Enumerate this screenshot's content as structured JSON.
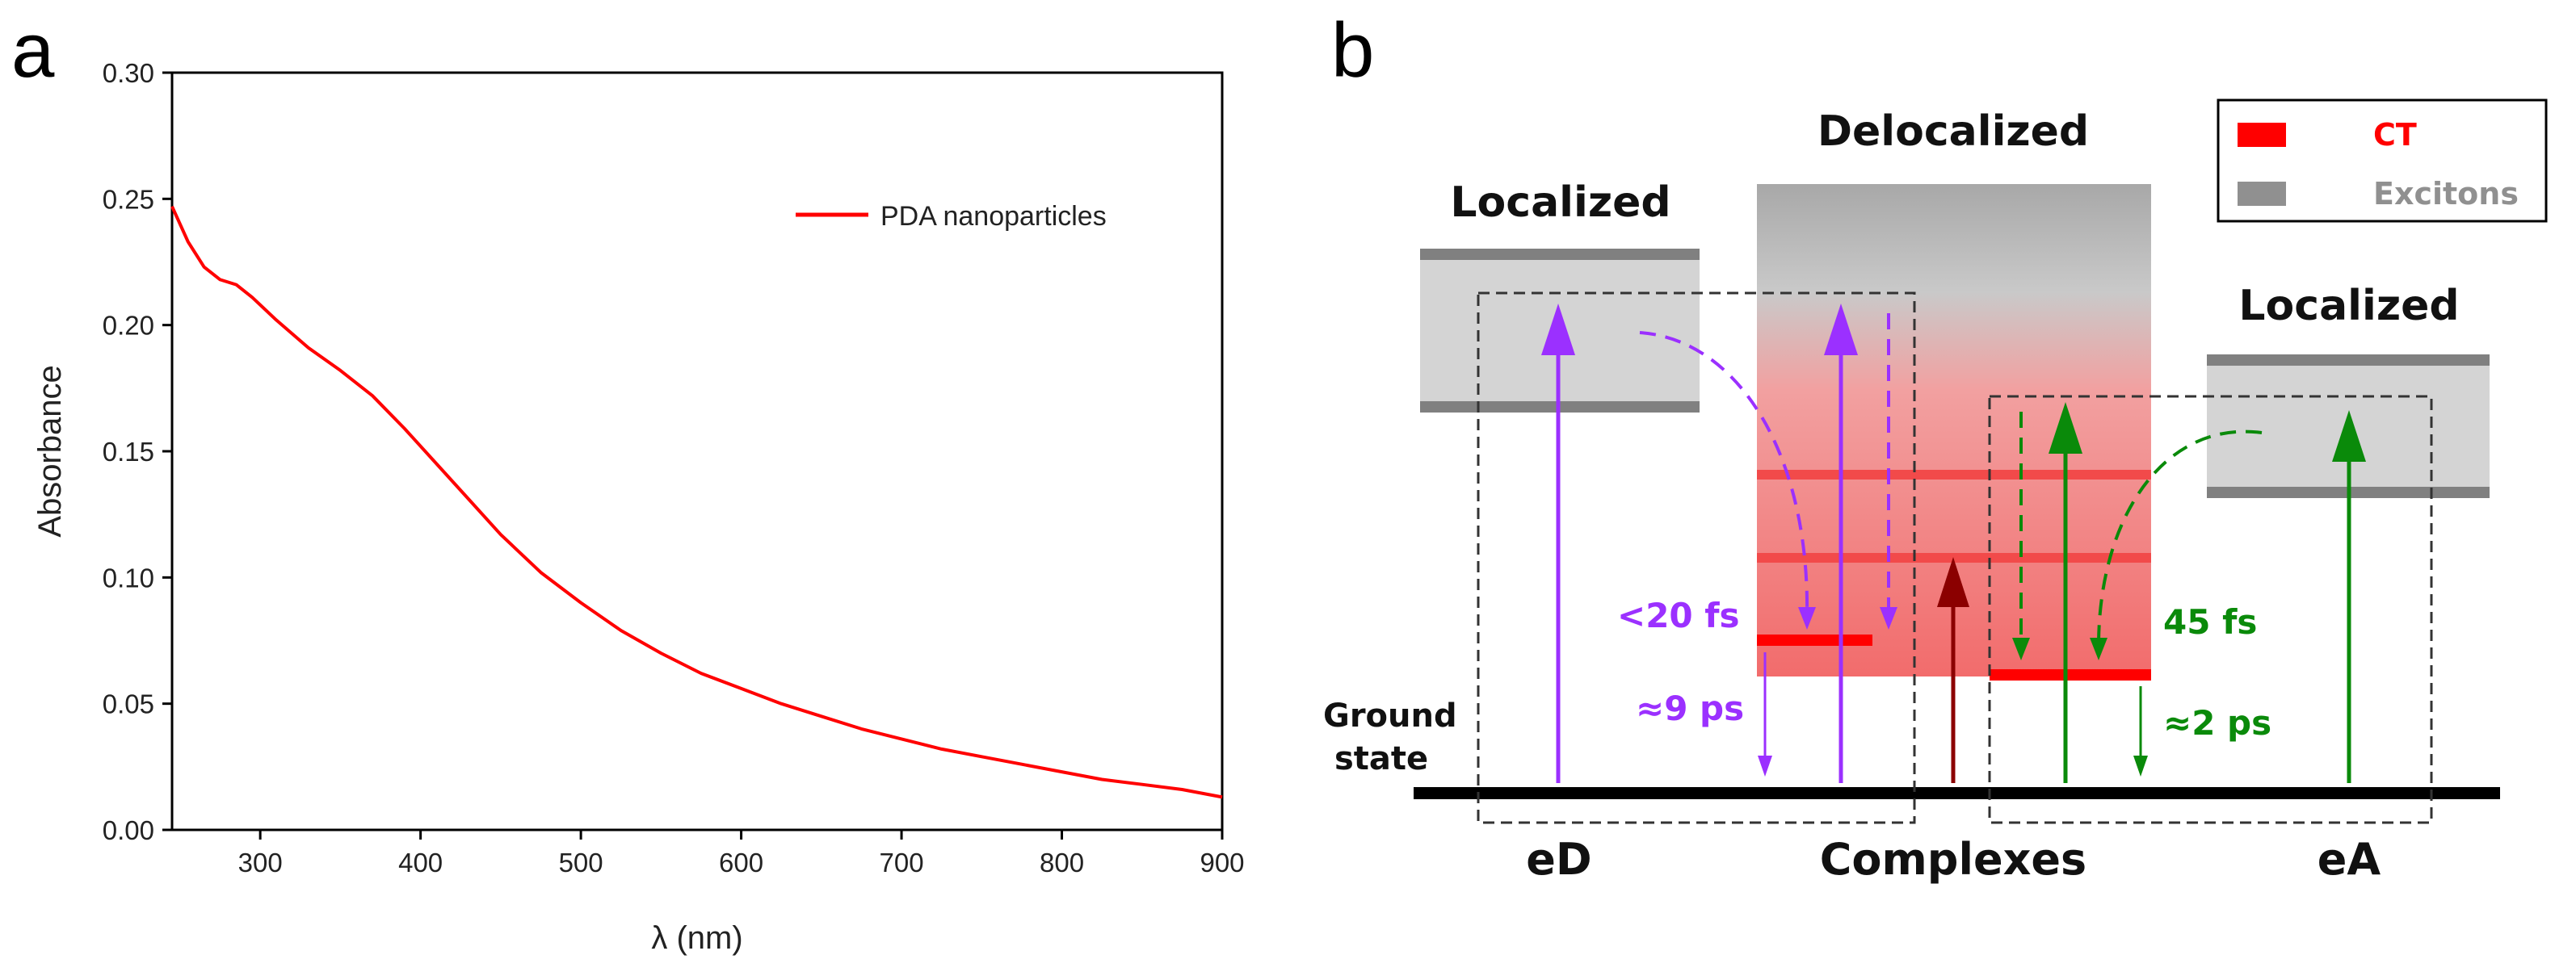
{
  "panels": {
    "a_label": "a",
    "b_label": "b"
  },
  "chart_data": {
    "type": "line",
    "title": "",
    "xlabel": "λ (nm)",
    "ylabel": "Absorbance",
    "xlim": [
      245,
      900
    ],
    "ylim": [
      0.0,
      0.3
    ],
    "x_ticks": [
      300,
      400,
      500,
      600,
      700,
      800,
      900
    ],
    "x_tick_labels": [
      "300",
      "400",
      "500",
      "600",
      "700",
      "800",
      "900"
    ],
    "y_ticks": [
      0.0,
      0.05,
      0.1,
      0.15,
      0.2,
      0.25,
      0.3
    ],
    "y_tick_labels": [
      "0.00",
      "0.05",
      "0.10",
      "0.15",
      "0.20",
      "0.25",
      "0.30"
    ],
    "grid": false,
    "legend_position": "top-right",
    "series": [
      {
        "name": "PDA nanoparticles",
        "color": "#ff0000",
        "x": [
          245,
          255,
          265,
          275,
          285,
          295,
          310,
          330,
          350,
          370,
          390,
          410,
          430,
          450,
          475,
          500,
          525,
          550,
          575,
          600,
          625,
          650,
          675,
          700,
          725,
          750,
          775,
          800,
          825,
          850,
          875,
          900
        ],
        "y": [
          0.247,
          0.233,
          0.223,
          0.218,
          0.216,
          0.211,
          0.202,
          0.191,
          0.182,
          0.172,
          0.159,
          0.145,
          0.131,
          0.117,
          0.102,
          0.09,
          0.079,
          0.07,
          0.062,
          0.056,
          0.05,
          0.045,
          0.04,
          0.036,
          0.032,
          0.029,
          0.026,
          0.023,
          0.02,
          0.018,
          0.016,
          0.013
        ]
      }
    ]
  },
  "diagram": {
    "labels": {
      "localized_left": "Localized",
      "delocalized": "Delocalized",
      "localized_right": "Localized",
      "ground_state_line1": "Ground",
      "ground_state_line2": "state",
      "ed": "eD",
      "complexes": "Complexes",
      "ea": "eA"
    },
    "legend": {
      "ct": "CT",
      "excitons": "Excitons"
    },
    "times": {
      "lt20fs": "<20 fs",
      "approx9ps": "≈9 ps",
      "fs45": "45 fs",
      "approx2ps": "≈2 ps"
    },
    "colors": {
      "purple": "#9b30ff",
      "green": "#0a8a0a",
      "darkred": "#8b0000",
      "ct_red": "#ff0000",
      "exciton_gray": "#909090"
    }
  }
}
